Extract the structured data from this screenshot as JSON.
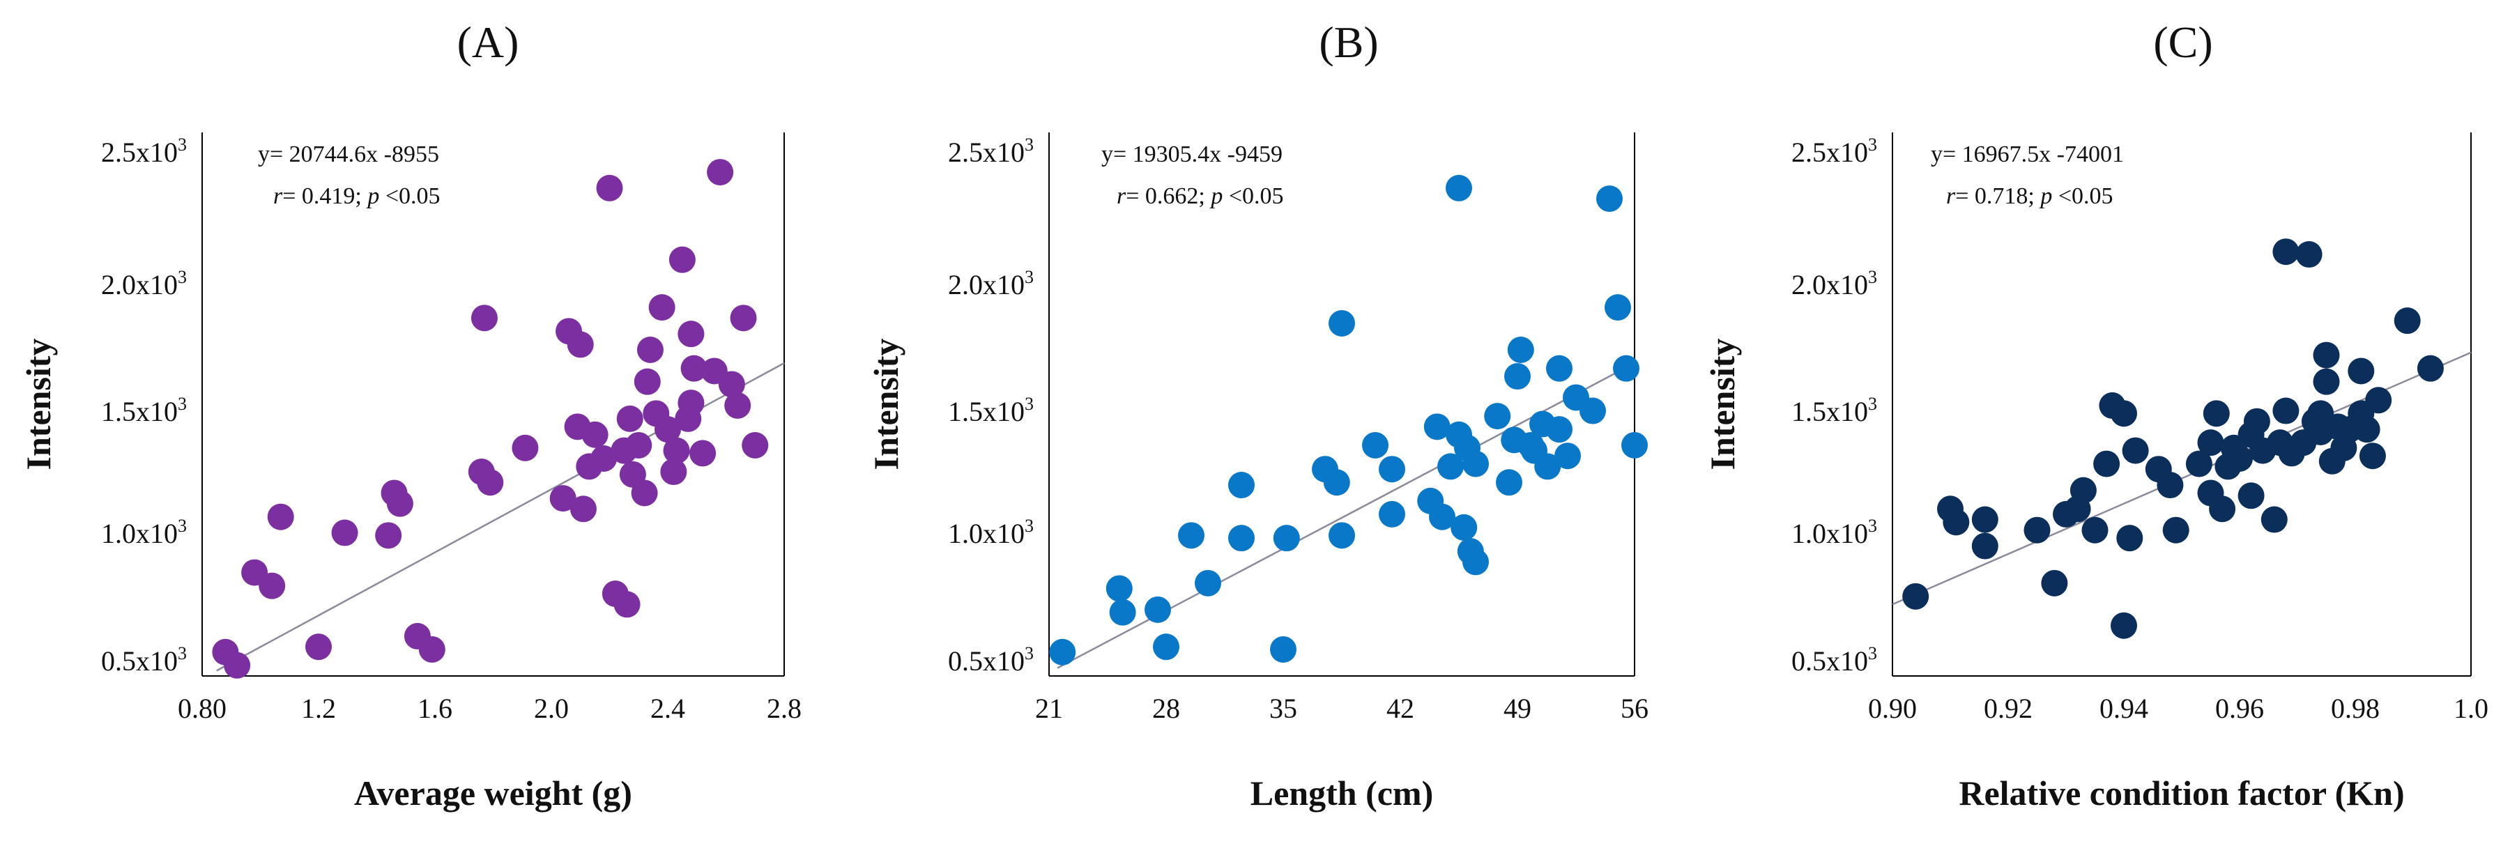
{
  "chart_data": [
    {
      "type": "scatter",
      "panel_label": "(A)",
      "title": "",
      "xlabel": "Average weight (g)",
      "ylabel": "Intensity",
      "xlim": [
        0.8,
        2.8
      ],
      "ylim": [
        450,
        2500
      ],
      "x_ticks": [
        "0.80",
        "1.2",
        "1.6",
        "2.0",
        "2.4",
        "2.8"
      ],
      "y_ticks": [
        {
          "base": "2.5x10",
          "exp": "3"
        },
        {
          "base": "2.0x10",
          "exp": "3"
        },
        {
          "base": "1.5x10",
          "exp": "3"
        },
        {
          "base": "1.0x10",
          "exp": "3"
        },
        {
          "base": "0.5x10",
          "exp": "3"
        }
      ],
      "equation": "y= 20744.6x -8955",
      "r_label": "r",
      "stats_text": "= 0.419; ",
      "p_label": "p",
      "p_text": " <0.05",
      "trend": {
        "x0": 0.85,
        "y0": 470,
        "x1": 2.8,
        "y1": 1630
      },
      "color": "#7B2FA0",
      "points": [
        [
          0.88,
          540
        ],
        [
          0.92,
          490
        ],
        [
          0.98,
          840
        ],
        [
          1.04,
          790
        ],
        [
          1.07,
          1050
        ],
        [
          1.2,
          560
        ],
        [
          1.29,
          990
        ],
        [
          1.44,
          980
        ],
        [
          1.46,
          1140
        ],
        [
          1.48,
          1100
        ],
        [
          1.54,
          600
        ],
        [
          1.59,
          550
        ],
        [
          1.76,
          1220
        ],
        [
          1.77,
          1800
        ],
        [
          1.79,
          1180
        ],
        [
          1.91,
          1310
        ],
        [
          2.04,
          1120
        ],
        [
          2.06,
          1750
        ],
        [
          2.09,
          1390
        ],
        [
          2.1,
          1700
        ],
        [
          2.11,
          1080
        ],
        [
          2.13,
          1240
        ],
        [
          2.15,
          1360
        ],
        [
          2.18,
          1270
        ],
        [
          2.2,
          2290
        ],
        [
          2.22,
          760
        ],
        [
          2.25,
          1300
        ],
        [
          2.26,
          720
        ],
        [
          2.27,
          1420
        ],
        [
          2.28,
          1210
        ],
        [
          2.3,
          1320
        ],
        [
          2.32,
          1140
        ],
        [
          2.33,
          1560
        ],
        [
          2.34,
          1680
        ],
        [
          2.36,
          1440
        ],
        [
          2.38,
          1840
        ],
        [
          2.4,
          1380
        ],
        [
          2.42,
          1220
        ],
        [
          2.43,
          1300
        ],
        [
          2.45,
          2020
        ],
        [
          2.47,
          1420
        ],
        [
          2.48,
          1480
        ],
        [
          2.48,
          1740
        ],
        [
          2.49,
          1610
        ],
        [
          2.52,
          1290
        ],
        [
          2.56,
          1600
        ],
        [
          2.58,
          2350
        ],
        [
          2.62,
          1550
        ],
        [
          2.64,
          1470
        ],
        [
          2.66,
          1800
        ],
        [
          2.7,
          1320
        ]
      ]
    },
    {
      "type": "scatter",
      "panel_label": "(B)",
      "title": "",
      "xlabel": "Length (cm)",
      "ylabel": "Intensity",
      "xlim": [
        21,
        56
      ],
      "ylim": [
        450,
        2500
      ],
      "x_ticks": [
        "21",
        "28",
        "35",
        "42",
        "49",
        "56"
      ],
      "y_ticks": [
        {
          "base": "2.5x10",
          "exp": "3"
        },
        {
          "base": "2.0x10",
          "exp": "3"
        },
        {
          "base": "1.5x10",
          "exp": "3"
        },
        {
          "base": "1.0x10",
          "exp": "3"
        },
        {
          "base": "0.5x10",
          "exp": "3"
        }
      ],
      "equation": "y= 19305.4x -9459",
      "r_label": "r",
      "stats_text": "= 0.662; ",
      "p_label": "p",
      "p_text": " <0.05",
      "trend": {
        "x0": 21.5,
        "y0": 480,
        "x1": 56,
        "y1": 1630
      },
      "color": "#0A78C8",
      "points": [
        [
          21.8,
          540
        ],
        [
          25.2,
          780
        ],
        [
          25.4,
          690
        ],
        [
          27.5,
          700
        ],
        [
          28.0,
          560
        ],
        [
          29.5,
          980
        ],
        [
          30.5,
          800
        ],
        [
          32.5,
          1170
        ],
        [
          32.5,
          970
        ],
        [
          35.0,
          550
        ],
        [
          35.2,
          970
        ],
        [
          37.5,
          1230
        ],
        [
          38.2,
          1180
        ],
        [
          38.5,
          1780
        ],
        [
          38.5,
          980
        ],
        [
          40.5,
          1320
        ],
        [
          41.5,
          1230
        ],
        [
          41.5,
          1060
        ],
        [
          43.8,
          1110
        ],
        [
          44.2,
          1390
        ],
        [
          44.5,
          1050
        ],
        [
          45.0,
          1240
        ],
        [
          45.5,
          1360
        ],
        [
          45.5,
          2290
        ],
        [
          45.8,
          1010
        ],
        [
          46.0,
          1310
        ],
        [
          46.2,
          920
        ],
        [
          46.5,
          1250
        ],
        [
          46.5,
          880
        ],
        [
          47.8,
          1430
        ],
        [
          48.5,
          1180
        ],
        [
          48.8,
          1340
        ],
        [
          49.0,
          1580
        ],
        [
          49.2,
          1680
        ],
        [
          49.8,
          1320
        ],
        [
          50.0,
          1300
        ],
        [
          50.5,
          1400
        ],
        [
          50.8,
          1240
        ],
        [
          51.5,
          1380
        ],
        [
          51.5,
          1610
        ],
        [
          52.0,
          1280
        ],
        [
          52.5,
          1500
        ],
        [
          53.5,
          1450
        ],
        [
          54.5,
          2250
        ],
        [
          55.0,
          1840
        ],
        [
          55.5,
          1610
        ],
        [
          56.0,
          1320
        ]
      ]
    },
    {
      "type": "scatter",
      "panel_label": "(C)",
      "title": "",
      "xlabel": "Relative condition factor (Kn)",
      "ylabel": "Intensity",
      "xlim": [
        0.9,
        1.0
      ],
      "ylim": [
        450,
        2500
      ],
      "x_ticks": [
        "0.90",
        "0.92",
        "0.94",
        "0.96",
        "0.98",
        "1.0"
      ],
      "y_ticks": [
        {
          "base": "2.5x10",
          "exp": "3"
        },
        {
          "base": "2.0x10",
          "exp": "3"
        },
        {
          "base": "1.5x10",
          "exp": "3"
        },
        {
          "base": "1.0x10",
          "exp": "3"
        },
        {
          "base": "0.5x10",
          "exp": "3"
        }
      ],
      "equation": "y= 16967.5x -74001",
      "r_label": "r",
      "stats_text": "= 0.718; ",
      "p_label": "p",
      "p_text": " <0.05",
      "trend": {
        "x0": 0.9,
        "y0": 720,
        "x1": 1.0,
        "y1": 1670
      },
      "color": "#0B2E5A",
      "points": [
        [
          0.904,
          750
        ],
        [
          0.91,
          1080
        ],
        [
          0.911,
          1030
        ],
        [
          0.916,
          940
        ],
        [
          0.916,
          1040
        ],
        [
          0.925,
          1000
        ],
        [
          0.928,
          800
        ],
        [
          0.93,
          1060
        ],
        [
          0.932,
          1080
        ],
        [
          0.933,
          1150
        ],
        [
          0.935,
          1000
        ],
        [
          0.937,
          1250
        ],
        [
          0.938,
          1470
        ],
        [
          0.94,
          640
        ],
        [
          0.94,
          1440
        ],
        [
          0.941,
          970
        ],
        [
          0.942,
          1300
        ],
        [
          0.946,
          1230
        ],
        [
          0.948,
          1170
        ],
        [
          0.949,
          1000
        ],
        [
          0.953,
          1250
        ],
        [
          0.955,
          1330
        ],
        [
          0.955,
          1140
        ],
        [
          0.956,
          1440
        ],
        [
          0.957,
          1080
        ],
        [
          0.958,
          1240
        ],
        [
          0.959,
          1310
        ],
        [
          0.96,
          1270
        ],
        [
          0.962,
          1130
        ],
        [
          0.962,
          1360
        ],
        [
          0.963,
          1410
        ],
        [
          0.964,
          1300
        ],
        [
          0.966,
          1040
        ],
        [
          0.967,
          1330
        ],
        [
          0.968,
          1450
        ],
        [
          0.968,
          2050
        ],
        [
          0.969,
          1290
        ],
        [
          0.971,
          1330
        ],
        [
          0.972,
          2040
        ],
        [
          0.973,
          1410
        ],
        [
          0.974,
          1370
        ],
        [
          0.974,
          1440
        ],
        [
          0.975,
          1560
        ],
        [
          0.975,
          1660
        ],
        [
          0.976,
          1260
        ],
        [
          0.977,
          1390
        ],
        [
          0.978,
          1310
        ],
        [
          0.979,
          1380
        ],
        [
          0.981,
          1440
        ],
        [
          0.981,
          1600
        ],
        [
          0.982,
          1380
        ],
        [
          0.983,
          1280
        ],
        [
          0.984,
          1490
        ],
        [
          0.989,
          1790
        ],
        [
          0.993,
          1610
        ]
      ]
    }
  ]
}
